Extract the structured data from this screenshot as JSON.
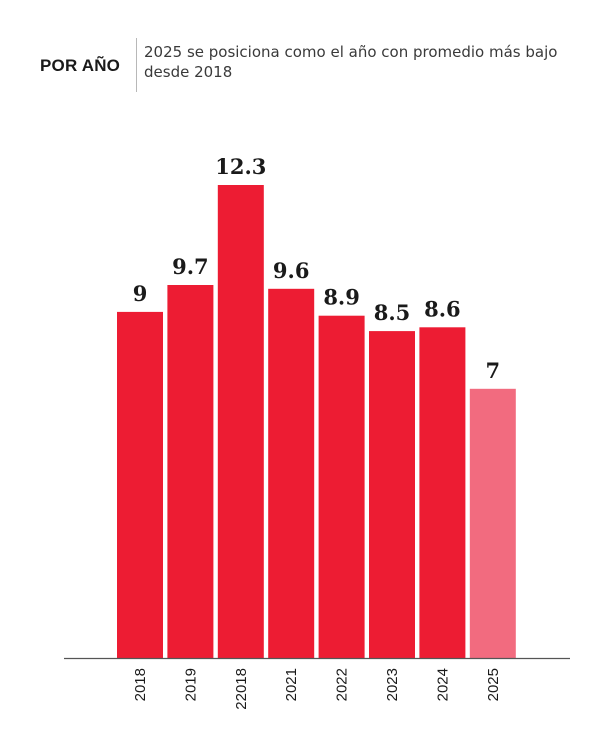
{
  "header": {
    "kicker": "POR AÑO",
    "subtitle": "2025 se posiciona como el año con promedio más bajo desde 2018"
  },
  "colors": {
    "bar": "#ed1c33",
    "bar_highlight": "#f26b7f",
    "axis": "#555555",
    "text": "#1a1a1a"
  },
  "chart_data": {
    "type": "bar",
    "title": "",
    "xlabel": "",
    "ylabel": "",
    "categories": [
      "2018",
      "2019",
      "22018",
      "2021",
      "2022",
      "2023",
      "2024",
      "2025"
    ],
    "values": [
      9,
      9.7,
      12.3,
      9.6,
      8.9,
      8.5,
      8.6,
      7
    ],
    "value_labels": [
      "9",
      "9.7",
      "12.3",
      "9.6",
      "8.9",
      "8.5",
      "8.6",
      "7"
    ],
    "highlight_index": 7,
    "ylim": [
      0,
      12.3
    ],
    "grid": false,
    "legend": "none"
  }
}
